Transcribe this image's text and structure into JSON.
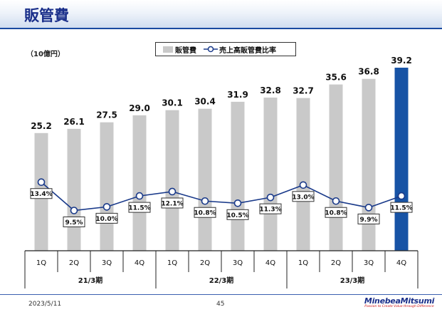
{
  "header": {
    "title": "販管費"
  },
  "footer": {
    "date": "2023/5/11",
    "page": "45"
  },
  "logo": {
    "name": "MinebeaMitsumi",
    "tagline": "Passion to Create Value through Difference"
  },
  "chart_data": {
    "type": "bar",
    "unit_label": "（10億円）",
    "categories": [
      "1Q",
      "2Q",
      "3Q",
      "4Q",
      "1Q",
      "2Q",
      "3Q",
      "4Q",
      "1Q",
      "2Q",
      "3Q",
      "4Q"
    ],
    "groups": [
      {
        "label": "21/3期",
        "span": 4
      },
      {
        "label": "22/3期",
        "span": 4
      },
      {
        "label": "23/3期",
        "span": 4
      }
    ],
    "series": [
      {
        "name": "販管費",
        "kind": "bar",
        "values": [
          25.2,
          26.1,
          27.5,
          29.0,
          30.1,
          30.4,
          31.9,
          32.8,
          32.7,
          35.6,
          36.8,
          39.2
        ],
        "labels": [
          "25.2",
          "26.1",
          "27.5",
          "29.0",
          "30.1",
          "30.4",
          "31.9",
          "32.8",
          "32.7",
          "35.6",
          "36.8",
          "39.2"
        ]
      },
      {
        "name": "売上高販管費比率",
        "kind": "line",
        "values": [
          13.4,
          9.5,
          10.0,
          11.5,
          12.1,
          10.8,
          10.5,
          11.3,
          13.0,
          10.8,
          9.9,
          11.5
        ],
        "labels": [
          "13.4%",
          "9.5%",
          "10.0%",
          "11.5%",
          "12.1%",
          "10.8%",
          "10.5%",
          "11.3%",
          "13.0%",
          "10.8%",
          "9.9%",
          "11.5%"
        ]
      }
    ],
    "colors": {
      "bar": "#c9c9c9",
      "highlight_bar": "#1753a5",
      "line": "#1a3a8a"
    },
    "highlight_index": 11,
    "grid": false,
    "legend_position": "top-center"
  }
}
